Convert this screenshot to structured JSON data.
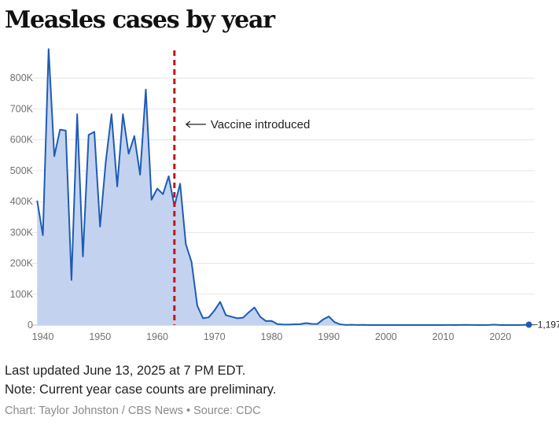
{
  "title": "Measles cases by year",
  "annotation": "Vaccine introduced",
  "footer": {
    "updated": "Last updated June 13, 2025 at 7 PM EDT.",
    "note": "Note: Current year case counts are preliminary.",
    "credit": "Chart: Taylor Johnston / CBS News • Source: CDC"
  },
  "chart_data": {
    "type": "area",
    "title": "Measles cases by year",
    "xlabel": "",
    "ylabel": "",
    "xlim": [
      1938,
      2026
    ],
    "ylim": [
      0,
      900000
    ],
    "x_ticks": [
      1940,
      1950,
      1960,
      1970,
      1980,
      1990,
      2000,
      2010,
      2020
    ],
    "y_ticks": [
      {
        "value": 0,
        "label": "0"
      },
      {
        "value": 100000,
        "label": "100K"
      },
      {
        "value": 200000,
        "label": "200K"
      },
      {
        "value": 300000,
        "label": "300K"
      },
      {
        "value": 400000,
        "label": "400K"
      },
      {
        "value": 500000,
        "label": "500K"
      },
      {
        "value": 600000,
        "label": "600K"
      },
      {
        "value": 700000,
        "label": "700K"
      },
      {
        "value": 800000,
        "label": "800K"
      }
    ],
    "grid": true,
    "line_color": "#1f5bb5",
    "fill_color": "#c3d3ef",
    "marker_color": "#c0161b",
    "vaccine_year": 1963,
    "last_point_label": "1,197",
    "series": [
      {
        "x": [
          1939,
          1940,
          1941,
          1942,
          1943,
          1944,
          1945,
          1946,
          1947,
          1948,
          1949,
          1950,
          1951,
          1952,
          1953,
          1954,
          1955,
          1956,
          1957,
          1958,
          1959,
          1960,
          1961,
          1962,
          1963,
          1964,
          1965,
          1966,
          1967,
          1968,
          1969,
          1970,
          1971,
          1972,
          1973,
          1974,
          1975,
          1976,
          1977,
          1978,
          1979,
          1980,
          1981,
          1982,
          1983,
          1984,
          1985,
          1986,
          1987,
          1988,
          1989,
          1990,
          1991,
          1992,
          1993,
          1994,
          1995,
          1996,
          1997,
          1998,
          1999,
          2000,
          2001,
          2002,
          2003,
          2004,
          2005,
          2006,
          2007,
          2008,
          2009,
          2010,
          2011,
          2012,
          2013,
          2014,
          2015,
          2016,
          2017,
          2018,
          2019,
          2020,
          2021,
          2022,
          2023,
          2024,
          2025
        ],
        "y": [
          403000,
          291000,
          894000,
          547000,
          633000,
          630000,
          146000,
          683000,
          222000,
          616000,
          626000,
          319000,
          530000,
          683000,
          449000,
          683000,
          555000,
          612000,
          487000,
          763000,
          406000,
          442000,
          424000,
          482000,
          385000,
          458000,
          262000,
          204000,
          63000,
          22000,
          25000,
          47000,
          75000,
          32000,
          27000,
          22000,
          24000,
          41000,
          57000,
          27000,
          13000,
          13500,
          3100,
          1700,
          1500,
          2600,
          2800,
          6300,
          3700,
          3400,
          18000,
          27700,
          9600,
          2200,
          300,
          960,
          300,
          500,
          140,
          100,
          100,
          86,
          116,
          44,
          56,
          37,
          66,
          55,
          43,
          140,
          71,
          63,
          220,
          55,
          187,
          667,
          188,
          86,
          120,
          375,
          1274,
          13,
          49,
          121,
          59,
          285,
          1197
        ]
      }
    ]
  }
}
